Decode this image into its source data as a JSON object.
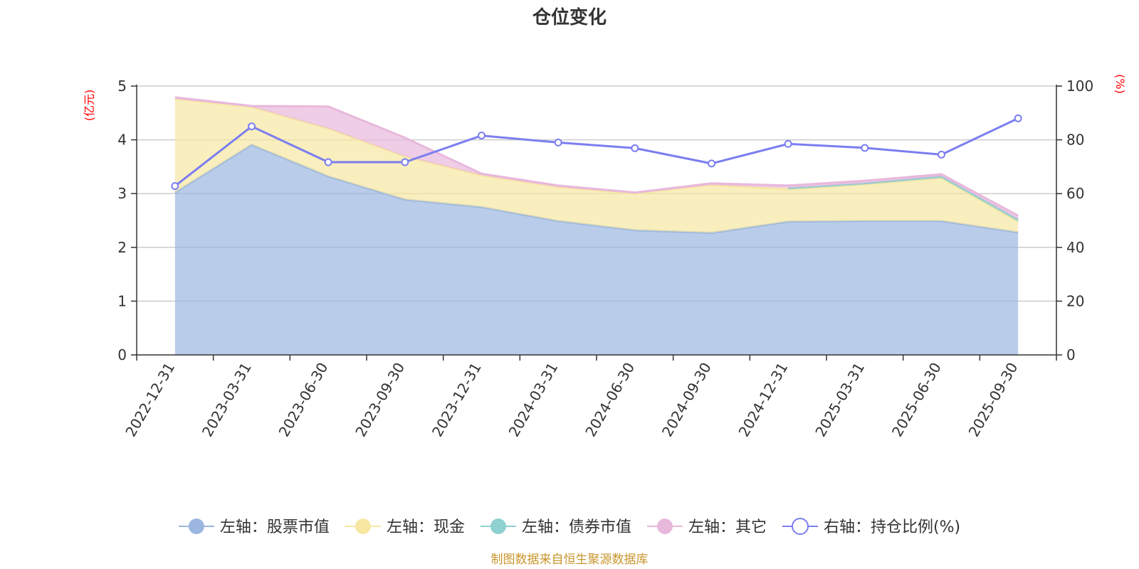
{
  "chart_data": {
    "type": "area",
    "title": "仓位变化",
    "left_axis_unit": "(亿元)",
    "right_axis_unit": "(%)",
    "categories": [
      "2022-12-31",
      "2023-03-31",
      "2023-06-30",
      "2023-09-30",
      "2023-12-31",
      "2024-03-31",
      "2024-06-30",
      "2024-09-30",
      "2024-12-31",
      "2025-03-31",
      "2025-06-30",
      "2025-09-30"
    ],
    "left_ylim": [
      0,
      5
    ],
    "left_ticks": [
      "0",
      "1",
      "2",
      "3",
      "4",
      "5"
    ],
    "right_ylim": [
      0,
      100
    ],
    "right_ticks": [
      "0",
      "20",
      "40",
      "60",
      "80",
      "100"
    ],
    "grid": true,
    "legend_position": "bottom",
    "series": [
      {
        "name": "左轴：股票市值",
        "axis": "left",
        "stacked": true,
        "color": "#9bb7e0",
        "values": [
          3.02,
          3.91,
          3.32,
          2.89,
          2.75,
          2.49,
          2.32,
          2.27,
          2.48,
          2.49,
          2.49,
          2.28
        ]
      },
      {
        "name": "左轴：现金",
        "axis": "left",
        "stacked": true,
        "color": "#f7e7a3",
        "values": [
          1.74,
          0.7,
          0.89,
          0.8,
          0.59,
          0.63,
          0.68,
          0.89,
          0.6,
          0.68,
          0.8,
          0.2
        ]
      },
      {
        "name": "左轴：债券市值",
        "axis": "left",
        "stacked": true,
        "color": "#8fd0d0",
        "values": [
          0,
          0,
          0,
          0,
          0,
          0,
          0,
          0,
          0.02,
          0.02,
          0.03,
          0.04
        ]
      },
      {
        "name": "左轴：其它",
        "axis": "left",
        "stacked": true,
        "color": "#e8b8dc",
        "values": [
          0.03,
          0.02,
          0.41,
          0.35,
          0.03,
          0.03,
          0.02,
          0.03,
          0.05,
          0.05,
          0.04,
          0.07
        ]
      },
      {
        "name": "右轴：持仓比例(%)",
        "axis": "right",
        "stacked": false,
        "color": "#7b7ef0",
        "values": [
          62.8,
          85.0,
          71.7,
          71.7,
          81.6,
          79.0,
          76.9,
          71.2,
          78.5,
          77.0,
          74.5,
          88.0
        ]
      }
    ],
    "source": "制图数据来自恒生聚源数据库"
  }
}
